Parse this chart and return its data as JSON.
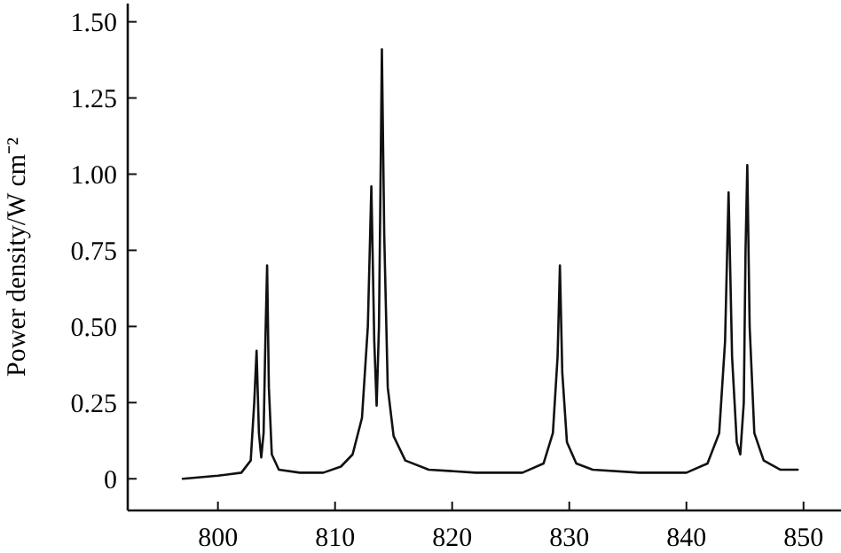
{
  "chart_data": {
    "type": "line",
    "ylabel": "Power density/W cm⁻²",
    "xlim": [
      792.3,
      853.2
    ],
    "xticks": [
      800,
      810,
      820,
      830,
      840,
      850
    ],
    "ylim": [
      -0.104,
      1.56
    ],
    "yticks": [
      0,
      {
        "value": 0.25,
        "label": "0.25"
      },
      {
        "value": 0.5,
        "label": "0.50"
      },
      {
        "value": 0.75,
        "label": "0.75"
      },
      {
        "value": 1,
        "label": "1.00"
      },
      {
        "value": 1.25,
        "label": "1.25"
      },
      {
        "value": 1.5,
        "label": "1.50"
      }
    ],
    "grid": false,
    "marker": "none",
    "line_style": "solid",
    "series": [
      {
        "color": "#111111",
        "x": [
          797,
          800,
          802,
          802.8,
          803.1,
          803.3,
          803.5,
          803.7,
          803.9,
          804.05,
          804.2,
          804.35,
          804.6,
          805.2,
          807,
          809,
          810.5,
          811.5,
          812.3,
          812.8,
          813.1,
          813.35,
          813.55,
          813.75,
          813.85,
          814.0,
          814.2,
          814.5,
          815,
          816,
          818,
          822,
          826,
          827.8,
          828.6,
          829.0,
          829.2,
          829.4,
          829.8,
          830.6,
          832,
          836,
          840,
          841.8,
          842.8,
          843.3,
          843.6,
          843.9,
          844.3,
          844.6,
          844.9,
          845.05,
          845.2,
          845.4,
          845.8,
          846.6,
          848,
          849.5
        ],
        "values": [
          0.0,
          0.01,
          0.02,
          0.06,
          0.25,
          0.42,
          0.15,
          0.07,
          0.15,
          0.45,
          0.7,
          0.3,
          0.08,
          0.03,
          0.02,
          0.02,
          0.04,
          0.08,
          0.2,
          0.5,
          0.96,
          0.45,
          0.24,
          0.5,
          0.85,
          1.41,
          0.8,
          0.3,
          0.14,
          0.06,
          0.03,
          0.02,
          0.02,
          0.05,
          0.15,
          0.4,
          0.7,
          0.35,
          0.12,
          0.05,
          0.03,
          0.02,
          0.02,
          0.05,
          0.15,
          0.45,
          0.94,
          0.4,
          0.12,
          0.08,
          0.25,
          0.75,
          1.03,
          0.5,
          0.15,
          0.06,
          0.03,
          0.03
        ]
      }
    ]
  }
}
